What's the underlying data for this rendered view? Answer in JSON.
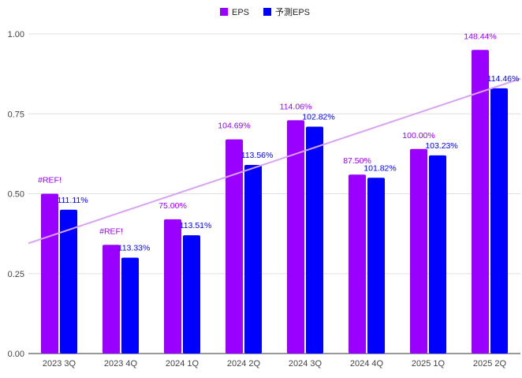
{
  "chart_data": {
    "type": "bar",
    "categories": [
      "2023 3Q",
      "2023 4Q",
      "2024 1Q",
      "2024 2Q",
      "2024 3Q",
      "2024 4Q",
      "2025 1Q",
      "2025 2Q"
    ],
    "series": [
      {
        "name": "EPS",
        "color": "#9900ff",
        "values": [
          0.5,
          0.34,
          0.42,
          0.67,
          0.73,
          0.56,
          0.64,
          0.95
        ],
        "labels": [
          "#REF!",
          "#REF!",
          "75.00%",
          "104.69%",
          "114.06%",
          "87.50%",
          "100.00%",
          "148.44%"
        ]
      },
      {
        "name": "予測EPS",
        "color": "#0000ff",
        "values": [
          0.45,
          0.3,
          0.37,
          0.59,
          0.71,
          0.55,
          0.62,
          0.83
        ],
        "labels": [
          "111.11%",
          "113.33%",
          "113.51%",
          "113.56%",
          "102.82%",
          "101.82%",
          "103.23%",
          "114.46%"
        ]
      }
    ],
    "trendline": {
      "series": "EPS",
      "color": "#d9a3f5",
      "start": 0.345,
      "end": 0.86
    },
    "y_ticks": [
      "0.00",
      "0.25",
      "0.50",
      "0.75",
      "1.00"
    ],
    "ylim": [
      0,
      1.0
    ],
    "grid": true,
    "legend_position": "top-center"
  }
}
